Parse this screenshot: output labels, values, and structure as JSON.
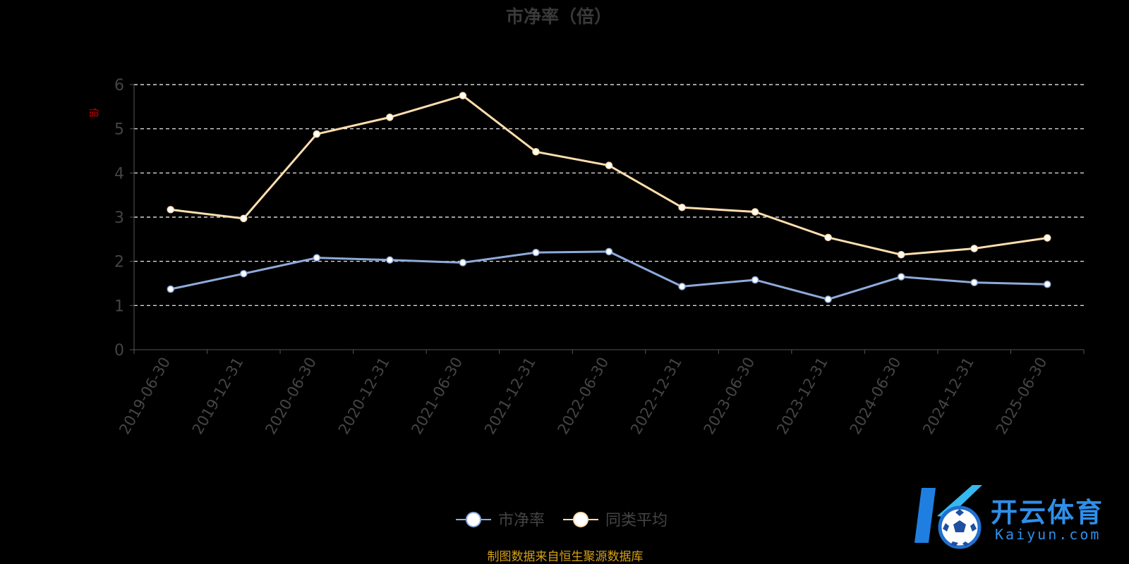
{
  "chart_data": {
    "type": "line",
    "title": "市净率（倍）",
    "ylabel": "倍",
    "ylim": [
      0,
      6
    ],
    "yticks": [
      "0",
      "1",
      "2",
      "3",
      "4",
      "5",
      "6"
    ],
    "grid": true,
    "legend_position": "bottom-center",
    "categories": [
      "2019-06-30",
      "2019-12-31",
      "2020-06-30",
      "2020-12-31",
      "2021-06-30",
      "2021-12-31",
      "2022-06-30",
      "2022-12-31",
      "2023-06-30",
      "2023-12-31",
      "2024-06-30",
      "2024-12-31",
      "2025-06-30"
    ],
    "series": [
      {
        "name": "市净率",
        "color": "#8eaadb",
        "values": [
          1.37,
          1.72,
          2.08,
          2.03,
          1.97,
          2.2,
          2.22,
          1.43,
          1.58,
          1.14,
          1.65,
          1.52,
          1.48
        ]
      },
      {
        "name": "同类平均",
        "color": "#ffdead",
        "values": [
          3.17,
          2.97,
          4.88,
          5.26,
          5.75,
          4.48,
          4.17,
          3.22,
          3.12,
          2.54,
          2.15,
          2.29,
          2.53
        ]
      }
    ],
    "source": "制图数据来自恒生聚源数据库"
  },
  "colors": {
    "background": "#000000",
    "title": "#3a3a3a",
    "axis": "#555555",
    "ticklabel": "#444444",
    "ylabel": "#cc0000",
    "source": "#d4a017",
    "watermark": "#2f8fe8"
  },
  "watermark": {
    "icon": "soccer-ball-k-logo",
    "text_cn": "开云体育",
    "text_en": "Kaiyun.com"
  }
}
